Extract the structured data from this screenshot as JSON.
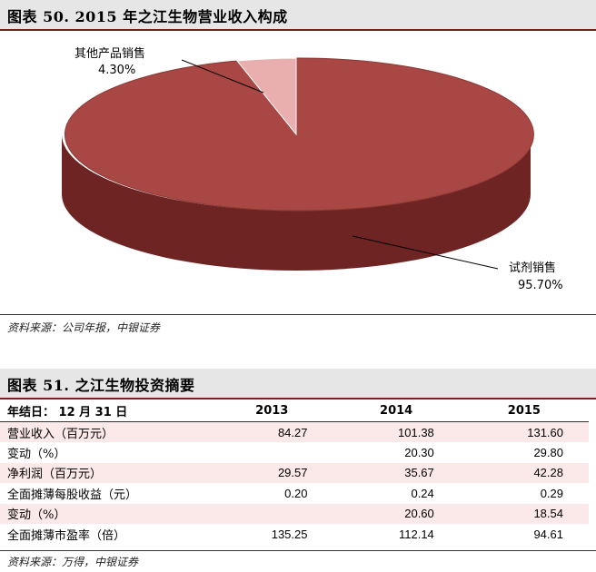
{
  "figure50": {
    "title": "图表 50. 2015 年之江生物营业收入构成",
    "source": "资料来源：公司年报，中银证券"
  },
  "chart_data": {
    "type": "pie",
    "title": "图表 50. 2015 年之江生物营业收入构成",
    "slices": [
      {
        "label": "试剂销售",
        "value": 95.7,
        "display": "95.70%",
        "color": "#a84743"
      },
      {
        "label": "其他产品销售",
        "value": 4.3,
        "display": "4.30%",
        "color": "#e9aeae"
      }
    ],
    "style": "3d"
  },
  "figure51": {
    "title": "图表 51. 之江生物投资摘要",
    "source": "资料来源：万得，中银证券",
    "header": [
      "年结日： 12 月 31 日",
      "2013",
      "2014",
      "2015"
    ],
    "rows": [
      {
        "label": "营业收入（百万元）",
        "values": [
          "84.27",
          "101.38",
          "131.60"
        ],
        "shaded": true
      },
      {
        "label": "变动（%）",
        "values": [
          "",
          "20.30",
          "29.80"
        ],
        "shaded": false
      },
      {
        "label": "净利润（百万元）",
        "values": [
          "29.57",
          "35.67",
          "42.28"
        ],
        "shaded": true
      },
      {
        "label": "全面摊薄每股收益（元）",
        "values": [
          "0.20",
          "0.24",
          "0.29"
        ],
        "shaded": false
      },
      {
        "label": "变动（%）",
        "values": [
          "",
          "20.60",
          "18.54"
        ],
        "shaded": true
      },
      {
        "label": "全面摊薄市盈率（倍）",
        "values": [
          "135.25",
          "112.14",
          "94.61"
        ],
        "shaded": false
      }
    ]
  }
}
